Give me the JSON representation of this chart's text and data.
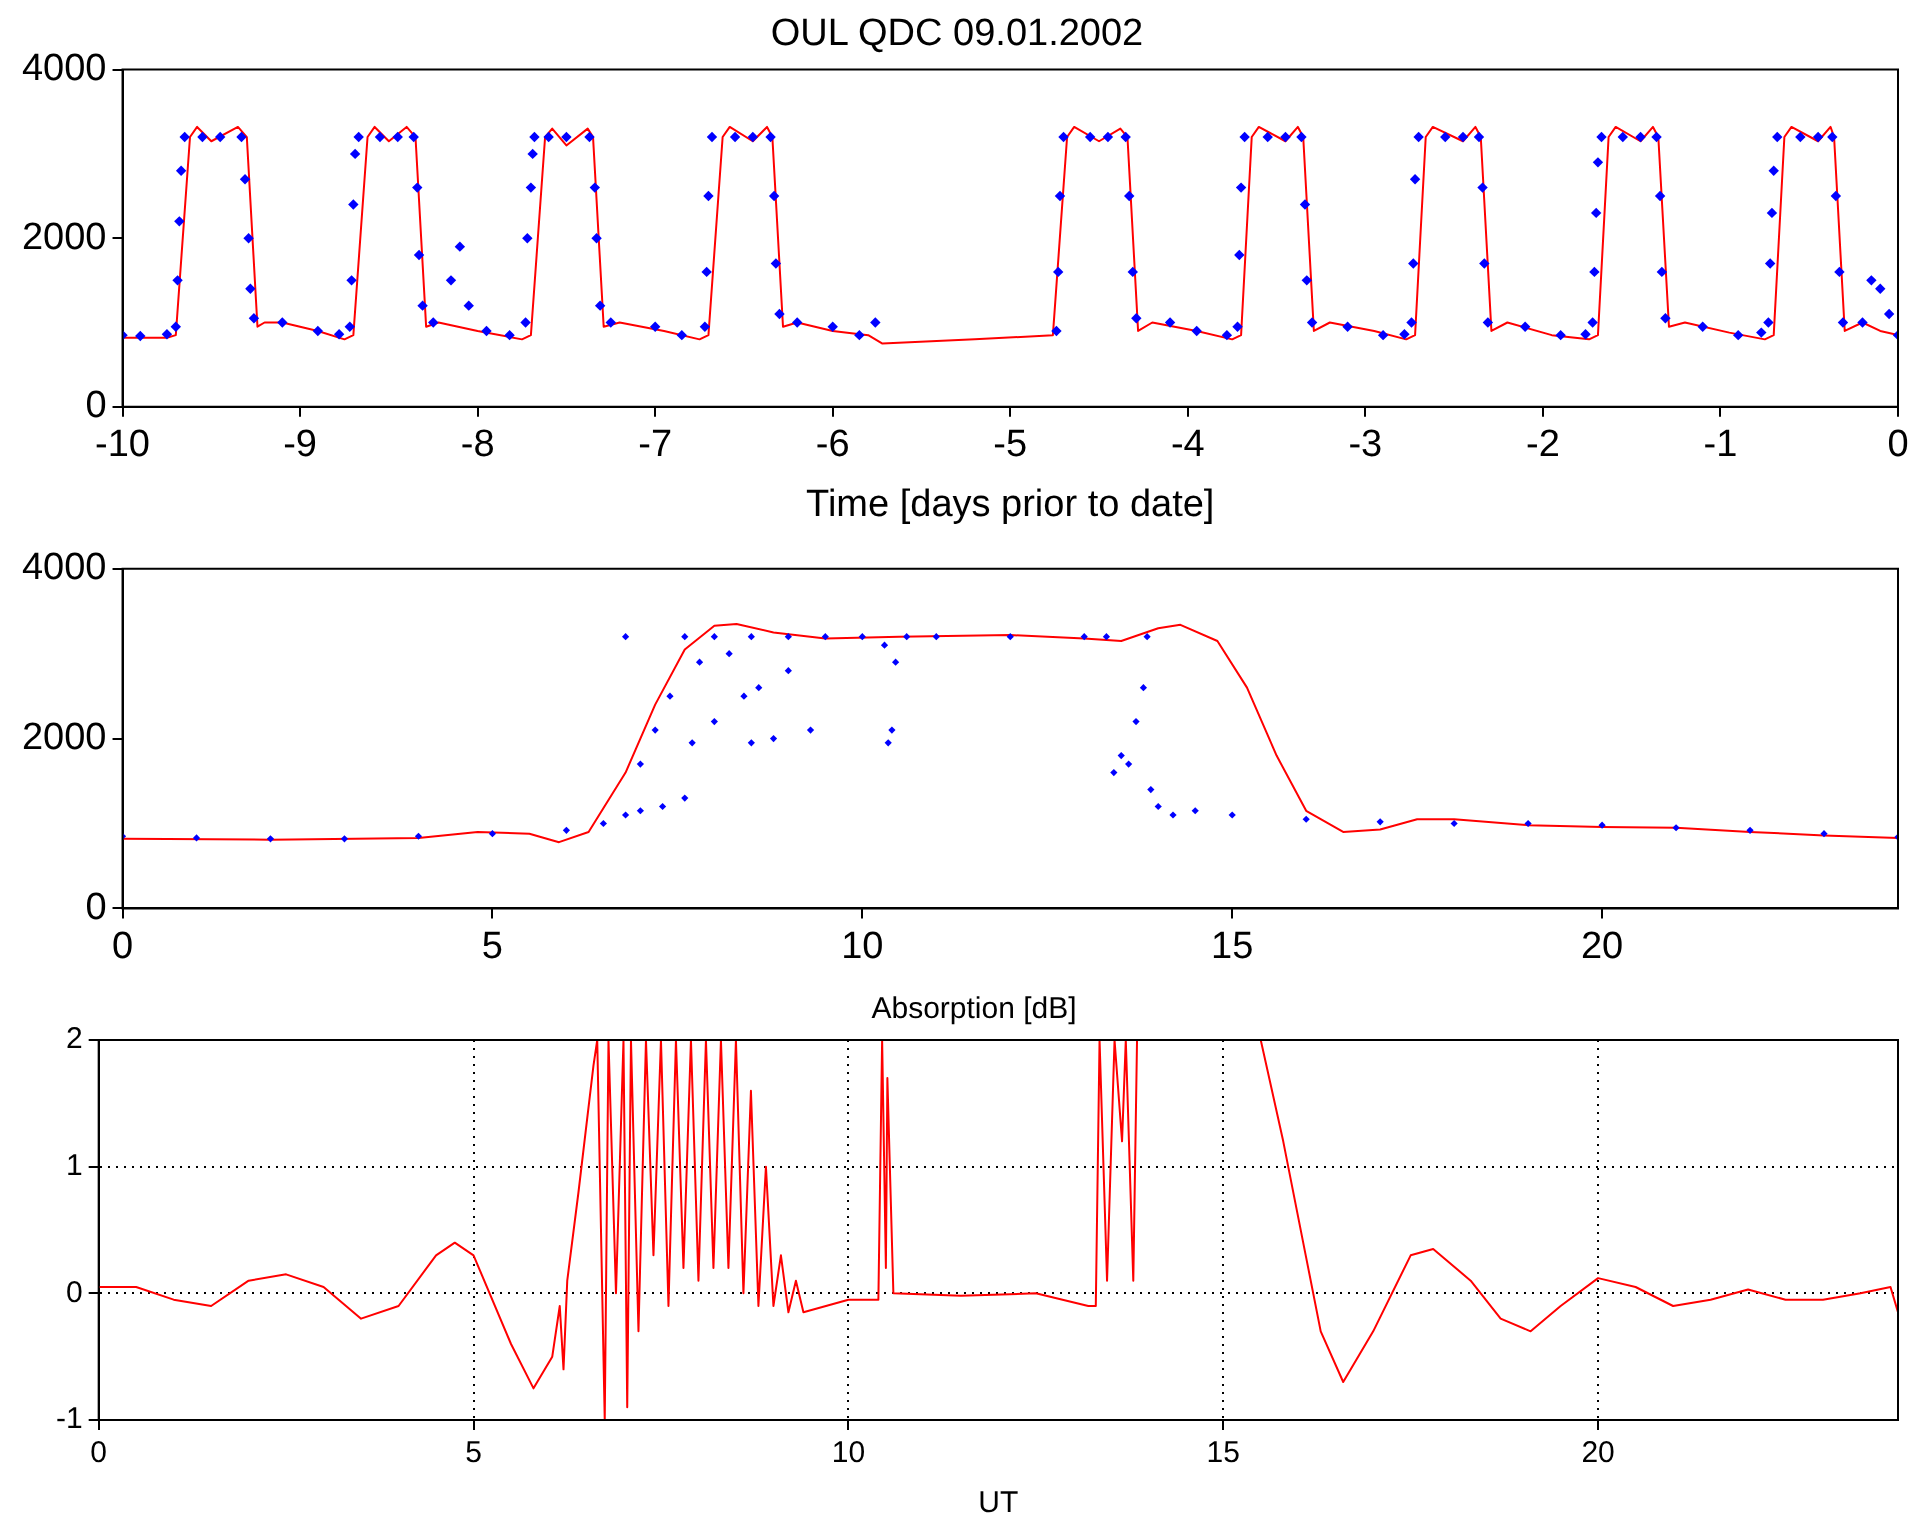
{
  "chart_data": [
    {
      "type": "line",
      "title": "OUL QDC 09.01.2002",
      "xlabel": "Time [days prior to date]",
      "xlim": [
        -10,
        0
      ],
      "xticks": [
        -10,
        -9,
        -8,
        -7,
        -6,
        -5,
        -4,
        -3,
        -2,
        -1,
        0
      ],
      "ylim": [
        0,
        4000
      ],
      "yticks": [
        0,
        2000,
        4000
      ],
      "grid": false,
      "legend": false,
      "series": [
        {
          "type": "scatter",
          "color": "#0000ff",
          "marker": "diamond",
          "x": [
            -10,
            -9.9,
            -9.75,
            -9.7,
            -9.69,
            -9.68,
            -9.67,
            -9.65,
            -9.55,
            -9.45,
            -9.33,
            -9.31,
            -9.29,
            -9.28,
            -9.26,
            -9.1,
            -8.9,
            -8.78,
            -8.72,
            -8.71,
            -8.7,
            -8.69,
            -8.67,
            -8.55,
            -8.45,
            -8.36,
            -8.34,
            -8.33,
            -8.31,
            -8.25,
            -8.15,
            -8.1,
            -8.05,
            -7.95,
            -7.82,
            -7.73,
            -7.72,
            -7.7,
            -7.69,
            -7.68,
            -7.6,
            -7.5,
            -7.37,
            -7.34,
            -7.33,
            -7.31,
            -7.25,
            -7,
            -6.85,
            -6.72,
            -6.71,
            -6.7,
            -6.68,
            -6.55,
            -6.45,
            -6.35,
            -6.33,
            -6.32,
            -6.3,
            -6.2,
            -6,
            -5.85,
            -5.76,
            -4.74,
            -4.73,
            -4.72,
            -4.7,
            -4.55,
            -4.45,
            -4.35,
            -4.33,
            -4.31,
            -4.29,
            -4.1,
            -3.95,
            -3.78,
            -3.72,
            -3.71,
            -3.7,
            -3.68,
            -3.55,
            -3.45,
            -3.36,
            -3.34,
            -3.33,
            -3.3,
            -3.1,
            -2.9,
            -2.78,
            -2.74,
            -2.73,
            -2.72,
            -2.7,
            -2.55,
            -2.45,
            -2.36,
            -2.34,
            -2.33,
            -2.31,
            -2.1,
            -1.9,
            -1.76,
            -1.72,
            -1.71,
            -1.7,
            -1.69,
            -1.67,
            -1.55,
            -1.45,
            -1.36,
            -1.34,
            -1.33,
            -1.31,
            -1.1,
            -0.9,
            -0.77,
            -0.73,
            -0.72,
            -0.71,
            -0.7,
            -0.68,
            -0.55,
            -0.45,
            -0.37,
            -0.35,
            -0.33,
            -0.31,
            -0.2,
            -0.15,
            -0.1,
            -0.05,
            0
          ],
          "values": [
            850,
            840,
            860,
            950,
            1500,
            2200,
            2800,
            3200,
            3200,
            3200,
            3200,
            2700,
            2000,
            1400,
            1050,
            1000,
            900,
            860,
            950,
            1500,
            2400,
            3000,
            3200,
            3200,
            3200,
            3200,
            2600,
            1800,
            1200,
            1000,
            1500,
            1900,
            1200,
            900,
            850,
            1000,
            2000,
            2600,
            3000,
            3200,
            3200,
            3200,
            3200,
            2600,
            2000,
            1200,
            1000,
            950,
            850,
            950,
            1600,
            2500,
            3200,
            3200,
            3200,
            3200,
            2500,
            1700,
            1100,
            1000,
            950,
            850,
            1000,
            900,
            1600,
            2500,
            3200,
            3200,
            3200,
            3200,
            2500,
            1600,
            1050,
            1000,
            900,
            850,
            950,
            1800,
            2600,
            3200,
            3200,
            3200,
            3200,
            2400,
            1500,
            1000,
            950,
            850,
            860,
            1000,
            1700,
            2700,
            3200,
            3200,
            3200,
            3200,
            2600,
            1700,
            1000,
            950,
            850,
            860,
            1000,
            1600,
            2300,
            2900,
            3200,
            3200,
            3200,
            3200,
            2500,
            1600,
            1050,
            950,
            850,
            880,
            1000,
            1700,
            2300,
            2800,
            3200,
            3200,
            3200,
            3200,
            2500,
            1600,
            1000,
            1000,
            1500,
            1400,
            1100,
            850
          ]
        },
        {
          "color": "#ff0000",
          "x": [
            -10,
            -9.75,
            -9.7,
            -9.62,
            -9.58,
            -9.5,
            -9.35,
            -9.3,
            -9.24,
            -9.2,
            -9.1,
            -8.9,
            -8.75,
            -8.7,
            -8.62,
            -8.58,
            -8.5,
            -8.4,
            -8.35,
            -8.29,
            -8.22,
            -8,
            -7.75,
            -7.7,
            -7.62,
            -7.58,
            -7.5,
            -7.38,
            -7.35,
            -7.29,
            -7.2,
            -6.95,
            -6.75,
            -6.7,
            -6.62,
            -6.58,
            -6.45,
            -6.37,
            -6.34,
            -6.28,
            -6.2,
            -6,
            -5.8,
            -5.72,
            -5.2,
            -4.76,
            -4.68,
            -4.64,
            -4.5,
            -4.38,
            -4.34,
            -4.28,
            -4.2,
            -3.95,
            -3.75,
            -3.7,
            -3.64,
            -3.6,
            -3.45,
            -3.38,
            -3.35,
            -3.29,
            -3.2,
            -2.95,
            -2.77,
            -2.72,
            -2.66,
            -2.62,
            -2.45,
            -2.38,
            -2.35,
            -2.29,
            -2.2,
            -1.95,
            -1.74,
            -1.69,
            -1.63,
            -1.59,
            -1.45,
            -1.38,
            -1.35,
            -1.29,
            -1.2,
            -0.95,
            -0.75,
            -0.7,
            -0.64,
            -0.6,
            -0.45,
            -0.38,
            -0.36,
            -0.3,
            -0.2,
            -0.1,
            0
          ],
          "values": [
            820,
            820,
            850,
            3200,
            3320,
            3150,
            3320,
            3200,
            950,
            1000,
            1000,
            900,
            800,
            850,
            3200,
            3320,
            3150,
            3320,
            3200,
            950,
            1000,
            900,
            800,
            850,
            3200,
            3300,
            3100,
            3300,
            3200,
            950,
            1000,
            900,
            800,
            850,
            3200,
            3320,
            3150,
            3320,
            3200,
            950,
            1000,
            900,
            850,
            750,
            800,
            850,
            3200,
            3320,
            3150,
            3300,
            3200,
            900,
            1000,
            900,
            800,
            850,
            3200,
            3320,
            3150,
            3320,
            3200,
            900,
            1000,
            900,
            800,
            850,
            3200,
            3320,
            3150,
            3320,
            3200,
            900,
            1000,
            850,
            800,
            850,
            3200,
            3320,
            3150,
            3320,
            3200,
            950,
            1000,
            880,
            800,
            850,
            3200,
            3320,
            3150,
            3320,
            3200,
            900,
            1000,
            900,
            850
          ]
        }
      ]
    },
    {
      "type": "line",
      "xlim": [
        0,
        24
      ],
      "xticks": [
        0,
        5,
        10,
        15,
        20
      ],
      "ylim": [
        0,
        4000
      ],
      "yticks": [
        0,
        2000,
        4000
      ],
      "grid": false,
      "legend": false,
      "series": [
        {
          "type": "scatter",
          "color": "#0000ff",
          "marker": "diamond",
          "x": [
            0,
            1,
            2,
            3,
            4,
            5,
            6,
            6.5,
            6.8,
            7,
            7.3,
            7.6,
            6.8,
            7,
            7.2,
            7.4,
            7.6,
            7.8,
            8,
            8.2,
            8.4,
            8.6,
            8.8,
            9,
            9.3,
            7.7,
            8.5,
            8,
            8.5,
            9,
            9.5,
            10,
            10.3,
            10.45,
            10.4,
            10.35,
            10.6,
            11,
            12,
            13,
            13.3,
            13.4,
            13.5,
            13.6,
            13.7,
            13.8,
            13.85,
            13.9,
            14,
            14.2,
            14.5,
            15,
            16,
            17,
            18,
            19,
            20,
            21,
            22,
            23,
            24
          ],
          "values": [
            850,
            830,
            820,
            820,
            850,
            880,
            920,
            1000,
            1100,
            1150,
            1200,
            1300,
            3200,
            1700,
            2100,
            2500,
            3200,
            2900,
            2200,
            3000,
            2500,
            2600,
            2000,
            2800,
            2100,
            1950,
            1950,
            3200,
            3200,
            3200,
            3200,
            3200,
            3100,
            2900,
            2100,
            1950,
            3200,
            3200,
            3200,
            3200,
            3200,
            1600,
            1800,
            1700,
            2200,
            2600,
            3200,
            1400,
            1200,
            1100,
            1150,
            1100,
            1050,
            1020,
            1000,
            1000,
            980,
            950,
            920,
            880,
            840
          ]
        },
        {
          "color": "#ff0000",
          "x": [
            0,
            2,
            4,
            4.8,
            5.5,
            5.9,
            6.3,
            6.8,
            7.2,
            7.6,
            8,
            8.3,
            8.8,
            9.5,
            10.5,
            12,
            13,
            13.5,
            14,
            14.3,
            14.8,
            15.2,
            15.6,
            16,
            16.5,
            17,
            17.5,
            18,
            19,
            20,
            21,
            22,
            23,
            24
          ],
          "values": [
            820,
            810,
            830,
            900,
            880,
            780,
            900,
            1600,
            2400,
            3050,
            3330,
            3350,
            3250,
            3180,
            3200,
            3220,
            3180,
            3150,
            3300,
            3340,
            3150,
            2600,
            1800,
            1150,
            900,
            930,
            1050,
            1050,
            980,
            960,
            950,
            900,
            860,
            830
          ]
        }
      ]
    },
    {
      "type": "line",
      "title": "Absorption [dB]",
      "xlabel": "UT",
      "xlim": [
        0,
        24
      ],
      "xticks": [
        0,
        5,
        10,
        15,
        20
      ],
      "ylim": [
        -1,
        2
      ],
      "yticks": [
        -1,
        0,
        1,
        2
      ],
      "grid": true,
      "legend": false,
      "series": [
        {
          "color": "#ff0000",
          "x": [
            0,
            0.5,
            1,
            1.5,
            2,
            2.5,
            3,
            3.5,
            4,
            4.5,
            4.75,
            5,
            5.5,
            5.8,
            6.05,
            6.15,
            6.2,
            6.25,
            6.4,
            6.6,
            6.65,
            6.75,
            6.8,
            6.9,
            7,
            7.05,
            7.1,
            7.2,
            7.3,
            7.4,
            7.5,
            7.6,
            7.7,
            7.8,
            7.9,
            8,
            8.1,
            8.2,
            8.3,
            8.4,
            8.5,
            8.6,
            8.7,
            8.8,
            8.9,
            9,
            9.1,
            9.2,
            9.3,
            9.4,
            10,
            10.4,
            10.45,
            10.5,
            10.52,
            10.6,
            11.5,
            12.5,
            13.2,
            13.3,
            13.35,
            13.45,
            13.55,
            13.65,
            13.7,
            13.8,
            13.85,
            13.9,
            14.5,
            15.5,
            15.8,
            16.1,
            16.3,
            16.6,
            17,
            17.5,
            17.8,
            18.3,
            18.7,
            19.1,
            19.5,
            20,
            20.5,
            21,
            21.5,
            22,
            22.5,
            23,
            23.5,
            23.9,
            24
          ],
          "values": [
            0.05,
            0.05,
            -0.05,
            -0.1,
            0.1,
            0.15,
            0.05,
            -0.2,
            -0.1,
            0.3,
            0.4,
            0.3,
            -0.4,
            -0.75,
            -0.5,
            -0.1,
            -0.6,
            0.1,
            0.8,
            1.8,
            2,
            -1,
            2,
            0,
            2,
            -0.9,
            2,
            -0.3,
            2,
            0.3,
            2,
            -0.1,
            2,
            0.2,
            2,
            0.1,
            2,
            0.2,
            2,
            0.2,
            2,
            0,
            1.6,
            -0.1,
            1,
            -0.1,
            0.3,
            -0.15,
            0.1,
            -0.15,
            -0.05,
            -0.05,
            2,
            0.2,
            1.7,
            0,
            -0.02,
            0,
            -0.1,
            -0.1,
            2,
            0.1,
            2,
            1.2,
            2,
            0.1,
            2,
            2,
            null,
            2,
            1.2,
            0.3,
            -0.3,
            -0.7,
            -0.3,
            0.3,
            0.35,
            0.1,
            -0.2,
            -0.3,
            -0.1,
            0.12,
            0.05,
            -0.1,
            -0.05,
            0.03,
            -0.05,
            -0.05,
            0,
            0.05,
            -0.15
          ]
        }
      ]
    }
  ]
}
